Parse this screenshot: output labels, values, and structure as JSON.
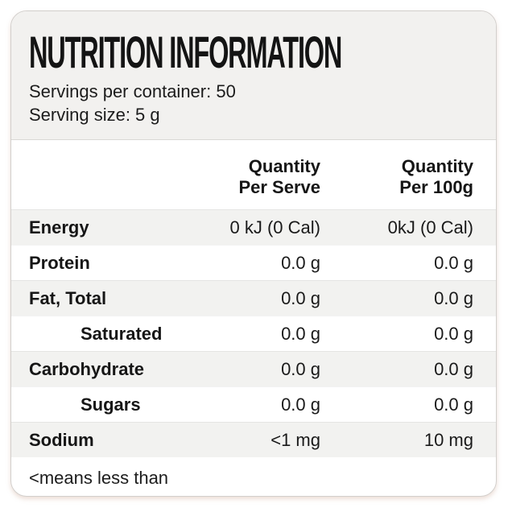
{
  "card": {
    "title": "NUTRITION INFORMATION",
    "servings_per_container": "Servings per container: 50",
    "serving_size": "Serving size: 5 g",
    "table": {
      "column_headers": {
        "per_serve": "Quantity\nPer Serve",
        "per_100g": "Quantity\nPer 100g"
      },
      "rows": [
        {
          "nutrient": "Energy",
          "per_serve": "0 kJ (0 Cal)",
          "per_100g": "0kJ (0 Cal)"
        },
        {
          "nutrient": "Protein",
          "per_serve": "0.0 g",
          "per_100g": "0.0 g"
        },
        {
          "nutrient": "Fat, Total",
          "per_serve": "0.0 g",
          "per_100g": "0.0 g"
        },
        {
          "nutrient": "Saturated",
          "per_serve": "0.0 g",
          "per_100g": "0.0 g"
        },
        {
          "nutrient": "Carbohydrate",
          "per_serve": "0.0 g",
          "per_100g": "0.0 g"
        },
        {
          "nutrient": "Sugars",
          "per_serve": "0.0 g",
          "per_100g": "0.0 g"
        },
        {
          "nutrient": "Sodium",
          "per_serve": "<1 mg",
          "per_100g": "10 mg"
        }
      ]
    },
    "footnote": "<means less than"
  },
  "colors": {
    "header_background": "#f2f1ef",
    "stripe_background": "#f2f2f0",
    "card_border": "#d2cfcc",
    "text": "#1a1a1a"
  }
}
